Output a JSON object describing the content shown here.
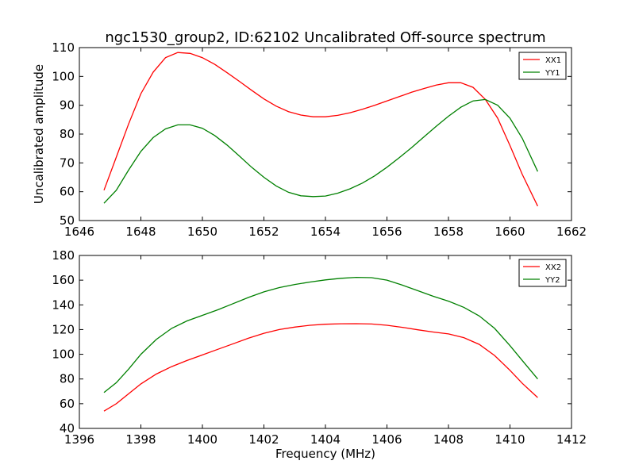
{
  "chart_data": [
    {
      "type": "line",
      "title": "ngc1530_group2, ID:62102 Uncalibrated Off-source spectrum",
      "xlabel": "",
      "ylabel": "Uncalibrated amplitude",
      "xlim": [
        1646,
        1662
      ],
      "ylim": [
        50,
        110
      ],
      "xticks": [
        1646,
        1648,
        1650,
        1652,
        1654,
        1656,
        1658,
        1660,
        1662
      ],
      "yticks": [
        50,
        60,
        70,
        80,
        90,
        100,
        110
      ],
      "grid": false,
      "legend_position": "top-right",
      "series": [
        {
          "name": "XX1",
          "color": "#ff0000",
          "x": [
            1646.8,
            1647.2,
            1647.6,
            1648.0,
            1648.4,
            1648.8,
            1649.2,
            1649.6,
            1650.0,
            1650.4,
            1650.8,
            1651.2,
            1651.6,
            1652.0,
            1652.4,
            1652.8,
            1653.2,
            1653.6,
            1654.0,
            1654.4,
            1654.8,
            1655.2,
            1655.6,
            1656.0,
            1656.4,
            1656.8,
            1657.2,
            1657.6,
            1658.0,
            1658.4,
            1658.8,
            1659.2,
            1659.6,
            1660.0,
            1660.4,
            1660.9
          ],
          "values": [
            60.5,
            72.0,
            83.5,
            94.0,
            101.5,
            106.5,
            108.3,
            108.0,
            106.5,
            104.2,
            101.3,
            98.3,
            95.2,
            92.2,
            89.7,
            87.8,
            86.6,
            86.0,
            86.0,
            86.5,
            87.4,
            88.6,
            90.0,
            91.5,
            93.0,
            94.5,
            95.8,
            97.0,
            97.8,
            97.8,
            96.2,
            92.0,
            85.5,
            76.0,
            66.0,
            55.0
          ]
        },
        {
          "name": "YY1",
          "color": "#008000",
          "x": [
            1646.8,
            1647.2,
            1647.6,
            1648.0,
            1648.4,
            1648.8,
            1649.2,
            1649.6,
            1650.0,
            1650.4,
            1650.8,
            1651.2,
            1651.6,
            1652.0,
            1652.4,
            1652.8,
            1653.2,
            1653.6,
            1654.0,
            1654.4,
            1654.8,
            1655.2,
            1655.6,
            1656.0,
            1656.4,
            1656.8,
            1657.2,
            1657.6,
            1658.0,
            1658.4,
            1658.8,
            1659.2,
            1659.6,
            1660.0,
            1660.4,
            1660.9
          ],
          "values": [
            56.0,
            60.5,
            67.5,
            74.0,
            78.8,
            81.8,
            83.2,
            83.2,
            82.0,
            79.5,
            76.2,
            72.4,
            68.5,
            65.0,
            62.0,
            59.8,
            58.6,
            58.3,
            58.5,
            59.5,
            61.0,
            63.0,
            65.5,
            68.5,
            71.8,
            75.3,
            79.0,
            82.7,
            86.2,
            89.3,
            91.5,
            92.0,
            90.0,
            85.5,
            78.5,
            67.0
          ]
        }
      ]
    },
    {
      "type": "line",
      "title": "",
      "xlabel": "Frequency (MHz)",
      "ylabel": "",
      "xlim": [
        1396,
        1412
      ],
      "ylim": [
        40,
        180
      ],
      "xticks": [
        1396,
        1398,
        1400,
        1402,
        1404,
        1406,
        1408,
        1410,
        1412
      ],
      "yticks": [
        40,
        60,
        80,
        100,
        120,
        140,
        160,
        180
      ],
      "grid": false,
      "legend_position": "top-right",
      "series": [
        {
          "name": "XX2",
          "color": "#ff0000",
          "x": [
            1396.8,
            1397.2,
            1397.6,
            1398.0,
            1398.5,
            1399.0,
            1399.5,
            1400.0,
            1400.5,
            1401.0,
            1401.5,
            1402.0,
            1402.5,
            1403.0,
            1403.5,
            1404.0,
            1404.5,
            1405.0,
            1405.5,
            1406.0,
            1406.5,
            1407.0,
            1407.5,
            1408.0,
            1408.5,
            1409.0,
            1409.5,
            1410.0,
            1410.4,
            1410.9
          ],
          "values": [
            54.0,
            60.0,
            68.0,
            76.0,
            84.0,
            90.0,
            95.0,
            99.5,
            104.0,
            108.5,
            113.0,
            117.0,
            120.0,
            122.0,
            123.5,
            124.3,
            124.7,
            124.8,
            124.5,
            123.5,
            121.8,
            119.8,
            118.0,
            116.5,
            113.5,
            108.0,
            99.0,
            87.0,
            76.5,
            65.0
          ]
        },
        {
          "name": "YY2",
          "color": "#008000",
          "x": [
            1396.8,
            1397.2,
            1397.6,
            1398.0,
            1398.5,
            1399.0,
            1399.5,
            1400.0,
            1400.5,
            1401.0,
            1401.5,
            1402.0,
            1402.5,
            1403.0,
            1403.5,
            1404.0,
            1404.5,
            1405.0,
            1405.5,
            1406.0,
            1406.5,
            1407.0,
            1407.5,
            1408.0,
            1408.5,
            1409.0,
            1409.5,
            1410.0,
            1410.4,
            1410.9
          ],
          "values": [
            69.0,
            77.0,
            88.0,
            100.0,
            112.0,
            121.0,
            127.0,
            131.5,
            136.0,
            141.0,
            146.0,
            150.5,
            154.0,
            156.5,
            158.5,
            160.2,
            161.5,
            162.3,
            162.0,
            160.0,
            156.0,
            151.5,
            147.0,
            143.0,
            138.0,
            131.0,
            121.0,
            107.0,
            95.0,
            80.0
          ]
        }
      ]
    }
  ]
}
